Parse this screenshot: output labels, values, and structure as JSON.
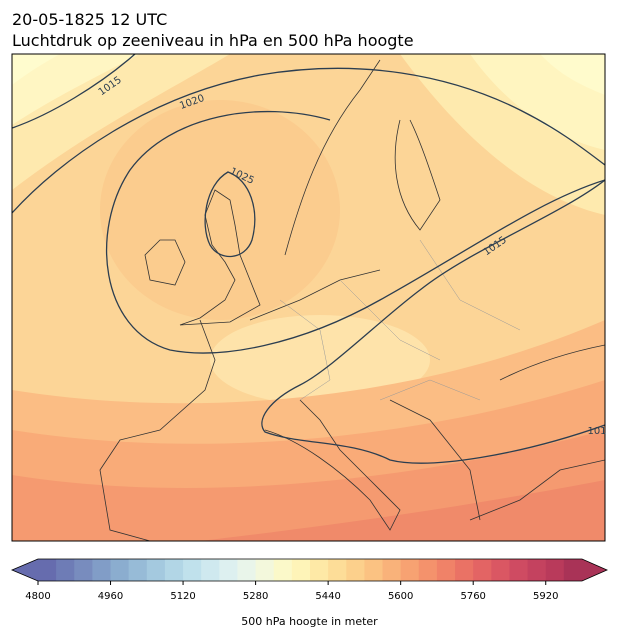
{
  "header": {
    "title": "20-05-1825 12 UTC",
    "subtitle": "Luchtdruk op zeeniveau in hPa en 500 hPa hoogte"
  },
  "map": {
    "isobar_labels": [
      "1015",
      "1020",
      "1025",
      "1015",
      "101"
    ]
  },
  "colorbar": {
    "label": "500 hPa hoogte in meter",
    "xlim": [
      4800,
      6000
    ],
    "xticks": [
      4800,
      4960,
      5120,
      5280,
      5440,
      5600,
      5760,
      5920
    ],
    "colors": [
      "#666cae",
      "#6e7cb6",
      "#788cbe",
      "#819dc7",
      "#8badcf",
      "#97bbd7",
      "#a4c9df",
      "#b2d6e6",
      "#c0e1ec",
      "#cfe9ef",
      "#ddf0f0",
      "#e9f5ea",
      "#f3f8dc",
      "#fbf9c9",
      "#fef4b8",
      "#fee9a6",
      "#fddd98",
      "#fcd08c",
      "#fbc282",
      "#f9b27a",
      "#f7a272",
      "#f4926c",
      "#f08268",
      "#ea7265",
      "#e36464",
      "#da5763",
      "#cf4b62",
      "#c4425f",
      "#b93a5b",
      "#a93357"
    ]
  }
}
